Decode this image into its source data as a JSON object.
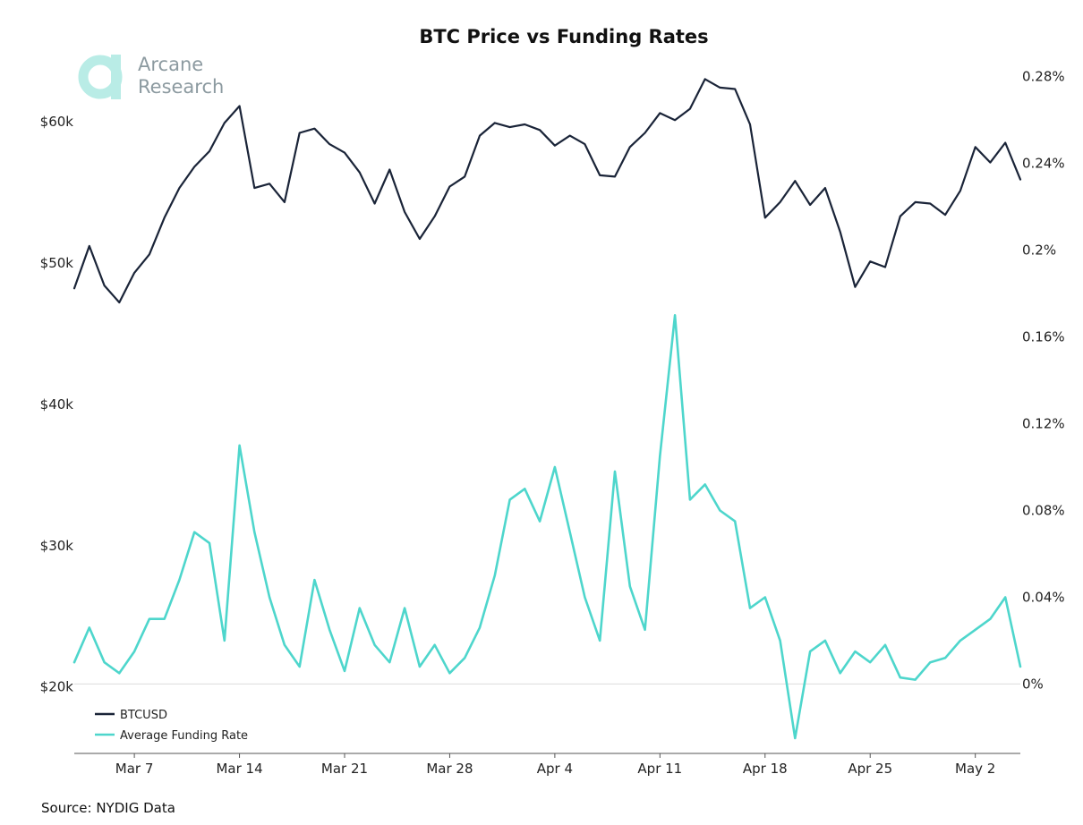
{
  "chart_data": {
    "type": "line",
    "title": "BTC Price vs Funding Rates",
    "source": "Source: NYDIG Data",
    "logo": {
      "line1": "Arcane",
      "line2": "Research"
    },
    "x_ticks": [
      "Mar 7",
      "Mar 14",
      "Mar 21",
      "Mar 28",
      "Apr 4",
      "Apr 11",
      "Apr 18",
      "Apr 25",
      "May 2"
    ],
    "x_range": [
      "2024-03-03",
      "2024-05-05"
    ],
    "left_axis": {
      "ticks": [
        "$20k",
        "$30k",
        "$40k",
        "$50k",
        "$60k"
      ],
      "values": [
        20000,
        30000,
        40000,
        50000,
        60000
      ],
      "range": [
        15300,
        64800
      ]
    },
    "right_axis": {
      "ticks": [
        "0%",
        "0.04%",
        "0.08%",
        "0.12%",
        "0.16%",
        "0.2%",
        "0.24%",
        "0.28%"
      ],
      "values": [
        0,
        0.04,
        0.08,
        0.12,
        0.16,
        0.2,
        0.24,
        0.28
      ],
      "range": [
        -0.032,
        0.2906
      ]
    },
    "grid": false,
    "legend": {
      "position": "bottom-left",
      "entries": [
        "BTCUSD",
        "Average Funding Rate"
      ]
    },
    "series": [
      {
        "name": "BTCUSD",
        "axis": "left",
        "color": "#1a2438",
        "x": [
          "2024-03-03",
          "2024-03-04",
          "2024-03-05",
          "2024-03-06",
          "2024-03-07",
          "2024-03-08",
          "2024-03-09",
          "2024-03-10",
          "2024-03-11",
          "2024-03-12",
          "2024-03-13",
          "2024-03-14",
          "2024-03-15",
          "2024-03-16",
          "2024-03-17",
          "2024-03-18",
          "2024-03-19",
          "2024-03-20",
          "2024-03-21",
          "2024-03-22",
          "2024-03-23",
          "2024-03-24",
          "2024-03-25",
          "2024-03-26",
          "2024-03-27",
          "2024-03-28",
          "2024-03-29",
          "2024-03-30",
          "2024-03-31",
          "2024-04-01",
          "2024-04-02",
          "2024-04-03",
          "2024-04-04",
          "2024-04-05",
          "2024-04-06",
          "2024-04-07",
          "2024-04-08",
          "2024-04-09",
          "2024-04-10",
          "2024-04-11",
          "2024-04-12",
          "2024-04-13",
          "2024-04-14",
          "2024-04-15",
          "2024-04-16",
          "2024-04-17",
          "2024-04-18",
          "2024-04-19",
          "2024-04-20",
          "2024-04-21",
          "2024-04-22",
          "2024-04-23",
          "2024-04-24",
          "2024-04-25",
          "2024-04-26",
          "2024-04-27",
          "2024-04-28",
          "2024-04-29",
          "2024-04-30",
          "2024-05-01",
          "2024-05-02",
          "2024-05-03",
          "2024-05-04",
          "2024-05-05"
        ],
        "values": [
          48200,
          51200,
          48400,
          47200,
          49300,
          50600,
          53200,
          55300,
          56800,
          57900,
          59900,
          61100,
          55300,
          55600,
          54300,
          59200,
          59500,
          58400,
          57800,
          56400,
          54200,
          56600,
          53600,
          51700,
          53300,
          55400,
          56100,
          59000,
          59900,
          59600,
          59800,
          59400,
          58300,
          59000,
          58400,
          56200,
          56100,
          58200,
          59200,
          60600,
          60100,
          60900,
          63000,
          62400,
          62300,
          59800,
          53200,
          54300,
          55800,
          54100,
          55300,
          52200,
          48300,
          50100,
          49700,
          53300,
          54300,
          54200,
          53400,
          55100,
          58200,
          57100,
          58500,
          55900
        ]
      },
      {
        "name": "Average Funding Rate",
        "axis": "right",
        "color": "#4ed6cc",
        "x": [
          "2024-03-03",
          "2024-03-04",
          "2024-03-05",
          "2024-03-06",
          "2024-03-07",
          "2024-03-08",
          "2024-03-09",
          "2024-03-10",
          "2024-03-11",
          "2024-03-12",
          "2024-03-13",
          "2024-03-14",
          "2024-03-15",
          "2024-03-16",
          "2024-03-17",
          "2024-03-18",
          "2024-03-19",
          "2024-03-20",
          "2024-03-21",
          "2024-03-22",
          "2024-03-23",
          "2024-03-24",
          "2024-03-25",
          "2024-03-26",
          "2024-03-27",
          "2024-03-28",
          "2024-03-29",
          "2024-03-30",
          "2024-03-31",
          "2024-04-01",
          "2024-04-02",
          "2024-04-03",
          "2024-04-04",
          "2024-04-05",
          "2024-04-06",
          "2024-04-07",
          "2024-04-08",
          "2024-04-09",
          "2024-04-10",
          "2024-04-11",
          "2024-04-12",
          "2024-04-13",
          "2024-04-14",
          "2024-04-15",
          "2024-04-16",
          "2024-04-17",
          "2024-04-18",
          "2024-04-19",
          "2024-04-20",
          "2024-04-21",
          "2024-04-22",
          "2024-04-23",
          "2024-04-24",
          "2024-04-25",
          "2024-04-26",
          "2024-04-27",
          "2024-04-28",
          "2024-04-29",
          "2024-04-30",
          "2024-05-01",
          "2024-05-02",
          "2024-05-03",
          "2024-05-04",
          "2024-05-05"
        ],
        "values": [
          0.01,
          0.026,
          0.01,
          0.005,
          0.015,
          0.03,
          0.03,
          0.048,
          0.07,
          0.065,
          0.02,
          0.11,
          0.07,
          0.04,
          0.018,
          0.008,
          0.048,
          0.025,
          0.006,
          0.035,
          0.018,
          0.01,
          0.035,
          0.008,
          0.018,
          0.005,
          0.012,
          0.026,
          0.05,
          0.085,
          0.09,
          0.075,
          0.1,
          0.07,
          0.04,
          0.02,
          0.098,
          0.045,
          0.025,
          0.105,
          0.17,
          0.085,
          0.092,
          0.08,
          0.075,
          0.035,
          0.04,
          0.02,
          -0.025,
          0.015,
          0.02,
          0.005,
          0.015,
          0.01,
          0.018,
          0.003,
          0.002,
          0.01,
          0.012,
          0.02,
          0.025,
          0.03,
          0.04,
          0.008
        ]
      }
    ]
  }
}
